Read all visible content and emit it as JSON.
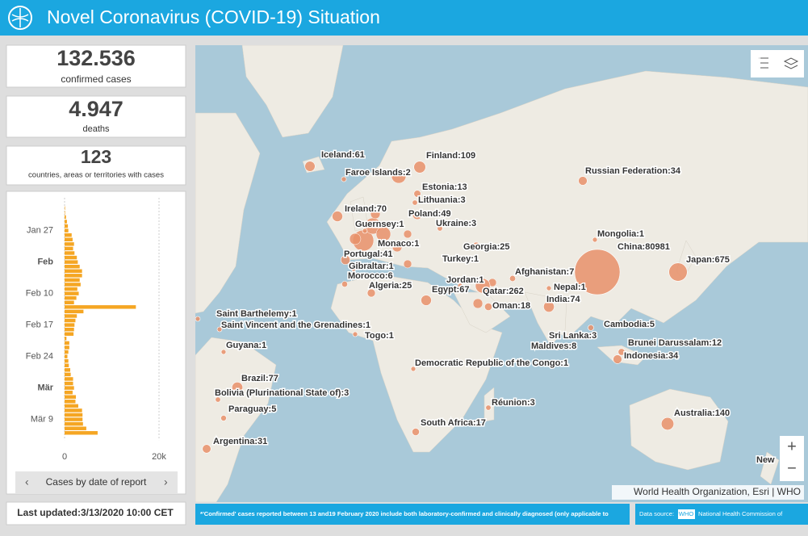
{
  "header": {
    "title": "Novel Coronavirus (COVID-19) Situation"
  },
  "stats": [
    {
      "value": "132.536",
      "label": "confirmed cases"
    },
    {
      "value": "4.947",
      "label": "deaths"
    },
    {
      "value": "123",
      "label": "countries, areas or territories with cases"
    }
  ],
  "chart_data": {
    "type": "bar",
    "orientation": "horizontal",
    "color": "#f5a623",
    "categories": [
      null,
      null,
      null,
      null,
      null,
      "Jan 27",
      null,
      null,
      null,
      null,
      null,
      null,
      "Feb",
      null,
      null,
      null,
      null,
      null,
      null,
      "Feb 10",
      null,
      null,
      null,
      null,
      null,
      null,
      "Feb 17",
      null,
      null,
      null,
      null,
      null,
      null,
      "Feb 24",
      null,
      null,
      null,
      null,
      null,
      null,
      "Mär",
      null,
      null,
      null,
      null,
      null,
      null,
      "Mär 9",
      null,
      null,
      null
    ],
    "values": [
      100,
      100,
      300,
      500,
      700,
      800,
      1500,
      1700,
      2000,
      1800,
      2100,
      2600,
      2800,
      3200,
      3700,
      3700,
      3200,
      3400,
      2700,
      3000,
      2500,
      2000,
      15100,
      4000,
      2600,
      2300,
      2100,
      2000,
      1900,
      400,
      1000,
      1000,
      800,
      600,
      800,
      900,
      1200,
      1300,
      1800,
      1800,
      2000,
      1700,
      2400,
      2300,
      2900,
      3700,
      3800,
      3800,
      3900,
      4600,
      7000
    ],
    "xlim": [
      0,
      20000
    ],
    "xticks": [
      0,
      {
        "value": 20000,
        "label": "20k"
      }
    ],
    "grid": true,
    "caption": "Cases by date of report"
  },
  "map": {
    "points": [
      {
        "label": "Iceland:61",
        "cases": 61
      },
      {
        "label": "Finland:109",
        "cases": 109
      },
      {
        "label": "Faroe Islands:2",
        "cases": 2
      },
      {
        "label": "Russian Federation:34",
        "cases": 34
      },
      {
        "label": "Estonia:13",
        "cases": 13
      },
      {
        "label": "Lithuania:3",
        "cases": 3
      },
      {
        "label": "Ireland:70",
        "cases": 70
      },
      {
        "label": "Poland:49",
        "cases": 49
      },
      {
        "label": "Ukraine:3",
        "cases": 3
      },
      {
        "label": "Guernsey:1",
        "cases": 1
      },
      {
        "label": "Mongolia:1",
        "cases": 1
      },
      {
        "label": "Monaco:1",
        "cases": 1
      },
      {
        "label": "Georgia:25",
        "cases": 25
      },
      {
        "label": "China:80981",
        "cases": 80981
      },
      {
        "label": "Portugal:41",
        "cases": 41
      },
      {
        "label": "Japan:675",
        "cases": 675
      },
      {
        "label": "Turkey:1",
        "cases": 1
      },
      {
        "label": "Gibraltar:1",
        "cases": 1
      },
      {
        "label": "Afghanistan:7",
        "cases": 7
      },
      {
        "label": "Morocco:6",
        "cases": 6
      },
      {
        "label": "Jordan:1",
        "cases": 1
      },
      {
        "label": "Nepal:1",
        "cases": 1
      },
      {
        "label": "Algeria:25",
        "cases": 25
      },
      {
        "label": "Egypt:67",
        "cases": 67
      },
      {
        "label": "Qatar:262",
        "cases": 262
      },
      {
        "label": "India:74",
        "cases": 74
      },
      {
        "label": "Oman:18",
        "cases": 18
      },
      {
        "label": "Saint Barthelemy:1",
        "cases": 1
      },
      {
        "label": "Saint Vincent and the Grenadines:1",
        "cases": 1
      },
      {
        "label": "Togo:1",
        "cases": 1
      },
      {
        "label": "Cambodia:5",
        "cases": 5
      },
      {
        "label": "Sri Lanka:3",
        "cases": 3
      },
      {
        "label": "Maldives:8",
        "cases": 8
      },
      {
        "label": "Brunei Darussalam:12",
        "cases": 12
      },
      {
        "label": "Guyana:1",
        "cases": 1
      },
      {
        "label": "Indonesia:34",
        "cases": 34
      },
      {
        "label": "Democratic Republic of the Congo:1",
        "cases": 1
      },
      {
        "label": "Brazil:77",
        "cases": 77
      },
      {
        "label": "Bolivia (Plurinational State of):3",
        "cases": 3
      },
      {
        "label": "Réunion:3",
        "cases": 3
      },
      {
        "label": "Australia:140",
        "cases": 140
      },
      {
        "label": "Paraguay:5",
        "cases": 5
      },
      {
        "label": "South Africa:17",
        "cases": 17
      },
      {
        "label": "Argentina:31",
        "cases": 31
      }
    ],
    "partial_label": "New",
    "zoom_in": "+",
    "zoom_out": "−",
    "attribution": "World Health Organization, Esri | WHO"
  },
  "footer": {
    "note": "*'Confirmed' cases reported between 13 and19 February 2020 include both laboratory-confirmed and clinically diagnosed (only  applicable to",
    "source_label": "Data source:",
    "source_tag": "WHO",
    "source_rest": "National Health Commission of",
    "last_updated": "Last updated:3/13/2020 10:00 CET"
  }
}
